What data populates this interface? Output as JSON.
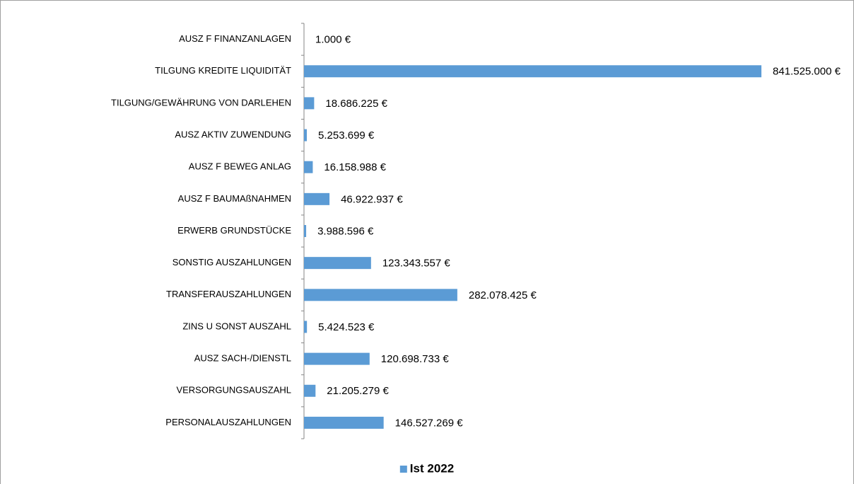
{
  "chart_data": {
    "type": "bar",
    "orientation": "horizontal",
    "categories": [
      "AUSZ F FINANZANLAGEN",
      "TILGUNG KREDITE LIQUIDITÄT",
      "TILGUNG/GEWÄHRUNG VON DARLEHEN",
      "AUSZ AKTIV ZUWENDUNG",
      "AUSZ F BEWEG ANLAG",
      "AUSZ F BAUMAßNAHMEN",
      "ERWERB GRUNDSTÜCKE",
      "SONSTIG AUSZAHLUNGEN",
      "TRANSFERAUSZAHLUNGEN",
      "ZINS U SONST AUSZAHL",
      "AUSZ SACH-/DIENSTL",
      "VERSORGUNGSAUSZAHL",
      "PERSONALAUSZAHLUNGEN"
    ],
    "series": [
      {
        "name": "Ist 2022",
        "color": "#5b9bd5",
        "values": [
          1000,
          841525000,
          18686225,
          5253699,
          16158988,
          46922937,
          3988596,
          123343557,
          282078425,
          5424523,
          120698733,
          21205279,
          146527269
        ],
        "value_labels": [
          "1.000 €",
          "841.525.000 €",
          "18.686.225 €",
          "5.253.699 €",
          "16.158.988 €",
          "46.922.937 €",
          "3.988.596 €",
          "123.343.557 €",
          "282.078.425 €",
          "5.424.523 €",
          "120.698.733 €",
          "21.205.279 €",
          "146.527.269 €"
        ]
      }
    ],
    "xlim": [
      0,
      900000000
    ],
    "legend": "bottom"
  }
}
